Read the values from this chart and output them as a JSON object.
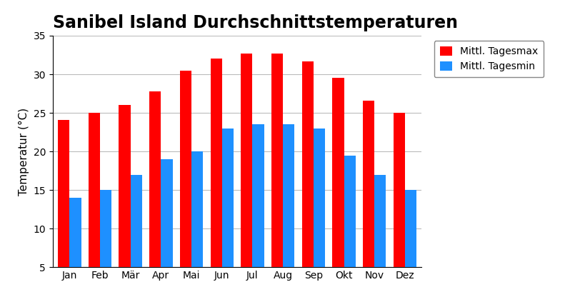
{
  "title": "Sanibel Island Durchschnittstemperaturen",
  "ylabel": "Temperatur (°C)",
  "months": [
    "Jan",
    "Feb",
    "Mär",
    "Apr",
    "Mai",
    "Jun",
    "Jul",
    "Aug",
    "Sep",
    "Okt",
    "Nov",
    "Dez"
  ],
  "tagesmax": [
    24.1,
    25.0,
    26.0,
    27.8,
    30.5,
    32.0,
    32.7,
    32.7,
    31.7,
    29.5,
    26.6,
    25.0
  ],
  "tagesmin": [
    14.0,
    15.0,
    17.0,
    19.0,
    20.0,
    23.0,
    23.5,
    23.5,
    23.0,
    19.5,
    17.0,
    15.0
  ],
  "color_max": "#FF0000",
  "color_min": "#1E90FF",
  "legend_max": "Mittl. Tagesmax",
  "legend_min": "Mittl. Tagesmin",
  "ylim": [
    5,
    35
  ],
  "yticks": [
    5,
    10,
    15,
    20,
    25,
    30,
    35
  ],
  "background_color": "#FFFFFF",
  "grid_color": "#BBBBBB",
  "title_fontsize": 17,
  "label_fontsize": 11,
  "tick_fontsize": 10,
  "legend_fontsize": 10
}
